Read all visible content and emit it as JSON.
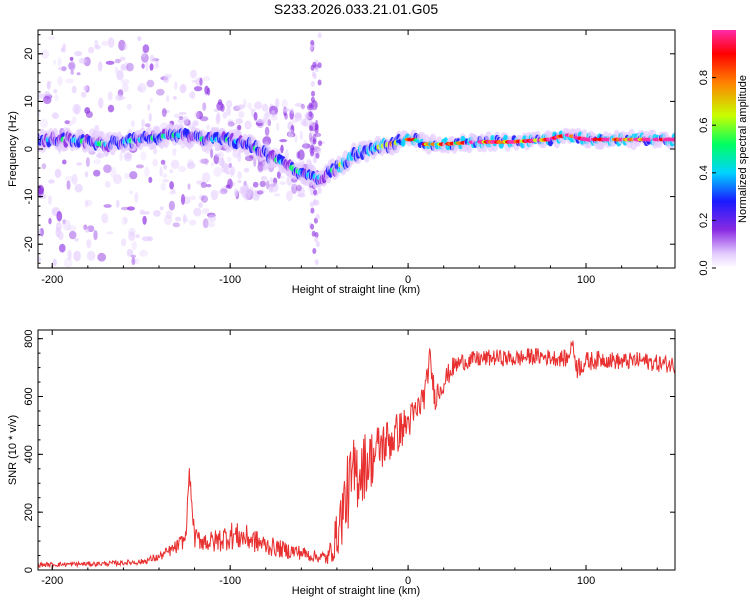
{
  "title": "S233.2026.033.21.01.G05",
  "chart_data": [
    {
      "type": "heatmap",
      "title": "S233.2026.033.21.01.G05",
      "xlabel": "Height of straight line (km)",
      "ylabel": "Frequency (Hz)",
      "xlim": [
        -208,
        150
      ],
      "ylim": [
        -25,
        25
      ],
      "xticks": [
        -200,
        -100,
        0,
        100
      ],
      "xtick_labels": [
        "-200",
        "-100",
        "0",
        "100"
      ],
      "yticks": [
        -20,
        -10,
        0,
        10,
        20
      ],
      "ytick_labels": [
        "-20",
        "-10",
        "0",
        "10",
        "20"
      ],
      "ridge": {
        "x": [
          -208,
          -190,
          -170,
          -150,
          -130,
          -115,
          -100,
          -90,
          -80,
          -70,
          -60,
          -50,
          -45,
          -40,
          -30,
          -20,
          -10,
          0,
          5,
          10,
          20,
          40,
          60,
          80,
          90,
          100,
          120,
          150
        ],
        "y": [
          2,
          2,
          1,
          2,
          3,
          2,
          2,
          1,
          -1,
          -3,
          -5,
          -6,
          -5,
          -4,
          -1,
          0,
          1,
          2,
          2,
          1,
          1,
          1.5,
          1.5,
          2,
          3,
          2,
          2,
          2
        ]
      },
      "colorbar": {
        "label": "Normalized spectral amplitude",
        "range": [
          0,
          1
        ],
        "ticks": [
          0.0,
          0.2,
          0.4,
          0.6,
          0.8
        ],
        "tick_labels": [
          "0.0",
          "0.2",
          "0.4",
          "0.6",
          "0.8"
        ],
        "colors": [
          "#ffffff",
          "#e4ccff",
          "#8a2be2",
          "#1a1aff",
          "#00d4ff",
          "#00ff60",
          "#c8ff00",
          "#ff8000",
          "#ff0000",
          "#ff2aa8"
        ]
      }
    },
    {
      "type": "line",
      "xlabel": "Height of straight line (km)",
      "ylabel": "SNR (10 * v/v)",
      "xlim": [
        -208,
        150
      ],
      "ylim": [
        0,
        830
      ],
      "xticks": [
        -200,
        -100,
        0,
        100
      ],
      "xtick_labels": [
        "-200",
        "-100",
        "0",
        "100"
      ],
      "yticks": [
        0,
        200,
        400,
        600,
        800
      ],
      "ytick_labels": [
        "0",
        "200",
        "400",
        "600",
        "800"
      ],
      "series": [
        {
          "name": "SNR",
          "color": "#e83030",
          "x": [
            -208,
            -190,
            -170,
            -150,
            -140,
            -130,
            -125,
            -123,
            -120,
            -110,
            -100,
            -90,
            -80,
            -70,
            -60,
            -55,
            -50,
            -45,
            -40,
            -35,
            -30,
            -25,
            -20,
            -15,
            -10,
            -5,
            0,
            5,
            10,
            12,
            15,
            20,
            25,
            30,
            40,
            50,
            60,
            70,
            80,
            90,
            92,
            95,
            100,
            110,
            120,
            130,
            140,
            150
          ],
          "y": [
            18,
            20,
            22,
            28,
            45,
            80,
            110,
            340,
            110,
            95,
            120,
            110,
            85,
            70,
            60,
            50,
            45,
            42,
            120,
            250,
            330,
            360,
            390,
            430,
            450,
            480,
            510,
            550,
            620,
            740,
            600,
            650,
            700,
            720,
            730,
            735,
            730,
            740,
            735,
            730,
            790,
            700,
            720,
            730,
            720,
            725,
            715,
            710
          ],
          "noise": [
            8,
            8,
            8,
            10,
            14,
            25,
            30,
            20,
            35,
            40,
            50,
            45,
            35,
            30,
            25,
            22,
            20,
            30,
            80,
            130,
            140,
            120,
            100,
            90,
            80,
            70,
            60,
            55,
            50,
            40,
            50,
            40,
            35,
            30,
            30,
            28,
            30,
            30,
            28,
            30,
            20,
            40,
            35,
            30,
            30,
            30,
            30,
            30
          ]
        }
      ]
    }
  ]
}
